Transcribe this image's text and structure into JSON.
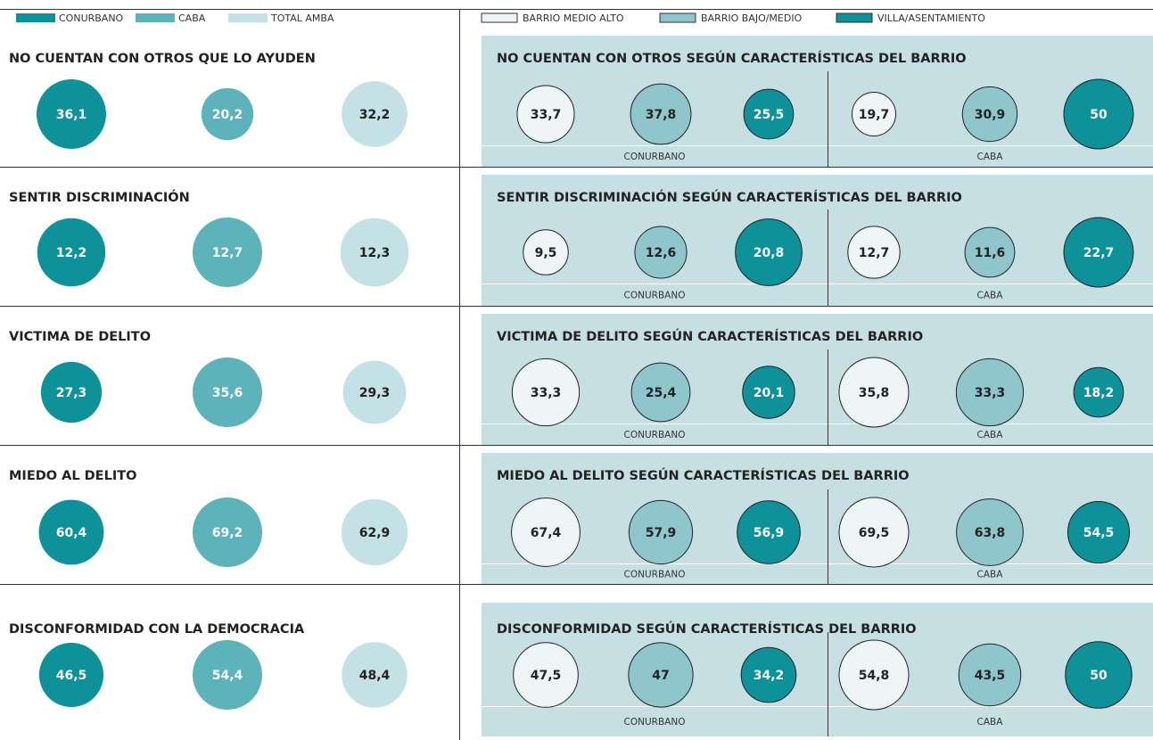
{
  "chart_data": {
    "type": "bubble",
    "legend_left": [
      {
        "name": "CONURBANO",
        "color": "#0e929a",
        "text_color": "#ffffff"
      },
      {
        "name": "CABA",
        "color": "#5db3ba",
        "text_color": "#ffffff"
      },
      {
        "name": "TOTAL AMBA",
        "color": "#c4e1e5",
        "text_color": "#222222"
      }
    ],
    "legend_right": [
      {
        "name": "BARRIO MEDIO ALTO",
        "color": "#eef5f6",
        "text_color": "#222222"
      },
      {
        "name": "BARRIO BAJO/MEDIO",
        "color": "#8ec6cc",
        "text_color": "#222222"
      },
      {
        "name": "VILLA/ASENTAMIENTO",
        "color": "#0e929a",
        "text_color": "#ffffff"
      }
    ],
    "rows": [
      {
        "title": "NO CUENTAN CON OTROS QUE LO AYUDEN",
        "values": [
          36.1,
          20.2,
          32.2
        ],
        "value_labels": [
          "36,1",
          "20,2",
          "32,2"
        ],
        "right_title": "NO CUENTAN CON OTROS SEGÚN CARACTERÍSTICAS DEL BARRIO",
        "groups": [
          "CONURBANO",
          "CABA"
        ],
        "right_values": [
          33.7,
          37.8,
          25.5,
          19.7,
          30.9,
          50
        ],
        "right_value_labels": [
          "33,7",
          "37,8",
          "25,5",
          "19,7",
          "30,9",
          "50"
        ]
      },
      {
        "title": "SENTIR DISCRIMINACIÓN",
        "values": [
          12.2,
          12.7,
          12.3
        ],
        "value_labels": [
          "12,2",
          "12,7",
          "12,3"
        ],
        "right_title": "SENTIR DISCRIMINACIÓN SEGÚN CARACTERÍSTICAS DEL BARRIO",
        "groups": [
          "CONURBANO",
          "CABA"
        ],
        "right_values": [
          9.5,
          12.6,
          20.8,
          12.7,
          11.6,
          22.7
        ],
        "right_value_labels": [
          "9,5",
          "12,6",
          "20,8",
          "12,7",
          "11,6",
          "22,7"
        ]
      },
      {
        "title": "VICTIMA DE DELITO",
        "values": [
          27.3,
          35.6,
          29.3
        ],
        "value_labels": [
          "27,3",
          "35,6",
          "29,3"
        ],
        "right_title": "VICTIMA DE DELITO SEGÚN CARACTERÍSTICAS DEL BARRIO",
        "groups": [
          "CONURBANO",
          "CABA"
        ],
        "right_values": [
          33.3,
          25.4,
          20.1,
          35.8,
          33.3,
          18.2
        ],
        "right_value_labels": [
          "33,3",
          "25,4",
          "20,1",
          "35,8",
          "33,3",
          "18,2"
        ]
      },
      {
        "title": "MIEDO AL DELITO",
        "values": [
          60.4,
          69.2,
          62.9
        ],
        "value_labels": [
          "60,4",
          "69,2",
          "62,9"
        ],
        "right_title": "MIEDO AL DELITO SEGÚN CARACTERÍSTICAS DEL BARRIO",
        "groups": [
          "CONURBANO",
          "CABA"
        ],
        "right_values": [
          67.4,
          57.9,
          56.9,
          69.5,
          63.8,
          54.5
        ],
        "right_value_labels": [
          "67,4",
          "57,9",
          "56,9",
          "69,5",
          "63,8",
          "54,5"
        ]
      },
      {
        "title": "DISCONFORMIDAD CON LA DEMOCRACIA",
        "values": [
          46.5,
          54.4,
          48.4
        ],
        "value_labels": [
          "46,5",
          "54,4",
          "48,4"
        ],
        "right_title": "DISCONFORMIDAD SEGÚN CARACTERÍSTICAS DEL BARRIO",
        "groups": [
          "CONURBANO",
          "CABA"
        ],
        "right_values": [
          47.5,
          47,
          34.2,
          54.8,
          43.5,
          50
        ],
        "right_value_labels": [
          "47,5",
          "47",
          "34,2",
          "54,8",
          "43,5",
          "50"
        ]
      }
    ]
  }
}
